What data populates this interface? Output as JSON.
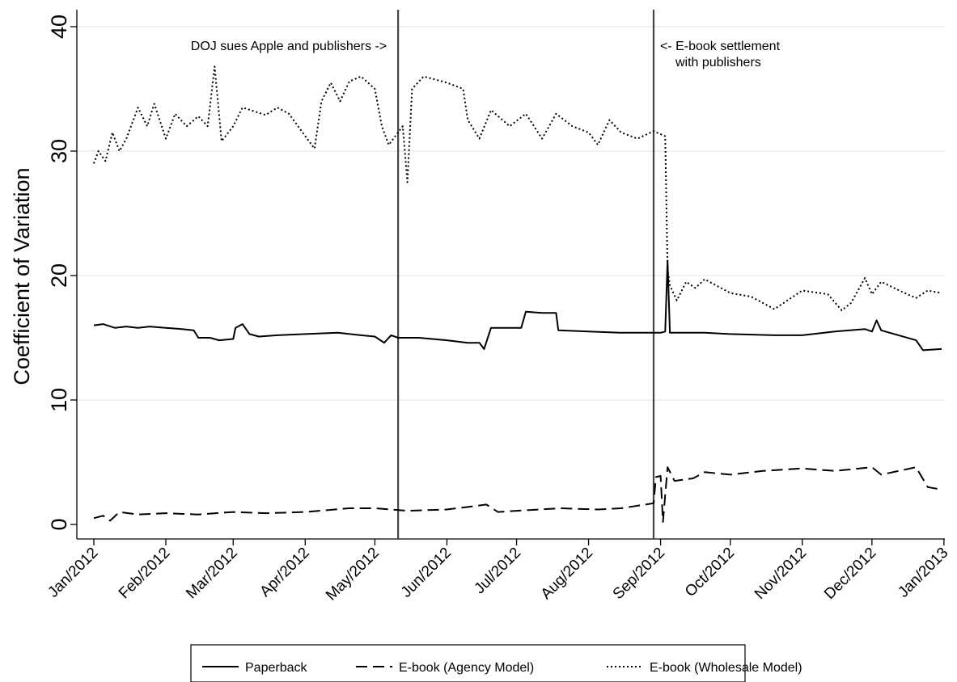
{
  "chart_data": {
    "type": "line",
    "title": "",
    "xlabel": "",
    "ylabel": "Coefficient of Variation",
    "x_unit": "date",
    "xlim": [
      "2012-01-01",
      "2012-12-31"
    ],
    "ylim": [
      0,
      40
    ],
    "yticks": [
      0,
      10,
      20,
      30,
      40
    ],
    "xtick_labels": [
      "Jan/2012",
      "Feb/2012",
      "Mar/2012",
      "Apr/2012",
      "May/2012",
      "Jun/2012",
      "Jul/2012",
      "Aug/2012",
      "Sep/2012",
      "Oct/2012",
      "Nov/2012",
      "Dec/2012",
      "Jan/2013"
    ],
    "xtick_dates": [
      "2012-01-01",
      "2012-02-01",
      "2012-03-01",
      "2012-04-01",
      "2012-05-01",
      "2012-06-01",
      "2012-07-01",
      "2012-08-01",
      "2012-09-01",
      "2012-10-01",
      "2012-11-01",
      "2012-12-01",
      "2013-01-01"
    ],
    "grid": true,
    "legend_position": "bottom",
    "vlines": [
      {
        "date": "2012-05-11",
        "label": "DOJ sues Apple and  publishers ->"
      },
      {
        "date": "2012-08-29",
        "label_lines": [
          "<- E-book settlement",
          "with publishers"
        ]
      }
    ],
    "series": [
      {
        "name": "Paperback",
        "style": "solid",
        "points": [
          [
            "2012-01-01",
            16.0
          ],
          [
            "2012-01-05",
            16.1
          ],
          [
            "2012-01-10",
            15.8
          ],
          [
            "2012-01-15",
            15.9
          ],
          [
            "2012-01-20",
            15.8
          ],
          [
            "2012-01-25",
            15.9
          ],
          [
            "2012-02-01",
            15.8
          ],
          [
            "2012-02-08",
            15.7
          ],
          [
            "2012-02-13",
            15.6
          ],
          [
            "2012-02-15",
            15.0
          ],
          [
            "2012-02-20",
            15.0
          ],
          [
            "2012-02-24",
            14.8
          ],
          [
            "2012-03-01",
            14.9
          ],
          [
            "2012-03-02",
            15.8
          ],
          [
            "2012-03-05",
            16.1
          ],
          [
            "2012-03-08",
            15.3
          ],
          [
            "2012-03-12",
            15.1
          ],
          [
            "2012-03-20",
            15.2
          ],
          [
            "2012-04-01",
            15.3
          ],
          [
            "2012-04-15",
            15.4
          ],
          [
            "2012-04-25",
            15.2
          ],
          [
            "2012-05-01",
            15.1
          ],
          [
            "2012-05-05",
            14.6
          ],
          [
            "2012-05-08",
            15.2
          ],
          [
            "2012-05-11",
            15.0
          ],
          [
            "2012-05-20",
            15.0
          ],
          [
            "2012-06-01",
            14.8
          ],
          [
            "2012-06-10",
            14.6
          ],
          [
            "2012-06-15",
            14.6
          ],
          [
            "2012-06-17",
            14.1
          ],
          [
            "2012-06-20",
            15.8
          ],
          [
            "2012-06-28",
            15.8
          ],
          [
            "2012-07-03",
            15.8
          ],
          [
            "2012-07-05",
            17.1
          ],
          [
            "2012-07-12",
            17.0
          ],
          [
            "2012-07-18",
            17.0
          ],
          [
            "2012-07-19",
            15.6
          ],
          [
            "2012-08-01",
            15.5
          ],
          [
            "2012-08-15",
            15.4
          ],
          [
            "2012-09-01",
            15.4
          ],
          [
            "2012-09-03",
            15.5
          ],
          [
            "2012-09-04",
            21.2
          ],
          [
            "2012-09-05",
            15.4
          ],
          [
            "2012-09-20",
            15.4
          ],
          [
            "2012-10-01",
            15.3
          ],
          [
            "2012-10-20",
            15.2
          ],
          [
            "2012-11-01",
            15.2
          ],
          [
            "2012-11-15",
            15.5
          ],
          [
            "2012-11-28",
            15.7
          ],
          [
            "2012-12-01",
            15.5
          ],
          [
            "2012-12-03",
            16.4
          ],
          [
            "2012-12-05",
            15.6
          ],
          [
            "2012-12-20",
            14.8
          ],
          [
            "2012-12-23",
            14.0
          ],
          [
            "2012-12-31",
            14.1
          ]
        ]
      },
      {
        "name": "E-book (Agency Model)",
        "style": "dashed",
        "points": [
          [
            "2012-01-01",
            0.5
          ],
          [
            "2012-01-05",
            0.7
          ],
          [
            "2012-01-08",
            0.3
          ],
          [
            "2012-01-12",
            1.0
          ],
          [
            "2012-01-20",
            0.8
          ],
          [
            "2012-02-01",
            0.9
          ],
          [
            "2012-02-15",
            0.8
          ],
          [
            "2012-03-01",
            1.0
          ],
          [
            "2012-03-15",
            0.9
          ],
          [
            "2012-04-01",
            1.0
          ],
          [
            "2012-04-20",
            1.3
          ],
          [
            "2012-05-01",
            1.3
          ],
          [
            "2012-05-15",
            1.1
          ],
          [
            "2012-06-01",
            1.2
          ],
          [
            "2012-06-10",
            1.4
          ],
          [
            "2012-06-18",
            1.6
          ],
          [
            "2012-06-23",
            1.0
          ],
          [
            "2012-07-01",
            1.1
          ],
          [
            "2012-07-20",
            1.3
          ],
          [
            "2012-08-05",
            1.2
          ],
          [
            "2012-08-15",
            1.3
          ],
          [
            "2012-08-29",
            1.7
          ],
          [
            "2012-08-30",
            3.8
          ],
          [
            "2012-09-01",
            3.9
          ],
          [
            "2012-09-02",
            0.2
          ],
          [
            "2012-09-04",
            4.6
          ],
          [
            "2012-09-07",
            3.5
          ],
          [
            "2012-09-15",
            3.7
          ],
          [
            "2012-09-20",
            4.2
          ],
          [
            "2012-10-01",
            4.0
          ],
          [
            "2012-10-15",
            4.3
          ],
          [
            "2012-11-01",
            4.5
          ],
          [
            "2012-11-15",
            4.3
          ],
          [
            "2012-12-01",
            4.6
          ],
          [
            "2012-12-05",
            4.0
          ],
          [
            "2012-12-20",
            4.6
          ],
          [
            "2012-12-25",
            3.0
          ],
          [
            "2012-12-31",
            2.8
          ]
        ]
      },
      {
        "name": "E-book (Wholesale Model)",
        "style": "dotted",
        "points": [
          [
            "2012-01-01",
            29.0
          ],
          [
            "2012-01-03",
            30.0
          ],
          [
            "2012-01-06",
            29.2
          ],
          [
            "2012-01-09",
            31.5
          ],
          [
            "2012-01-12",
            30.0
          ],
          [
            "2012-01-15",
            31.0
          ],
          [
            "2012-01-20",
            33.5
          ],
          [
            "2012-01-24",
            32.0
          ],
          [
            "2012-01-27",
            33.8
          ],
          [
            "2012-02-01",
            31.0
          ],
          [
            "2012-02-05",
            33.0
          ],
          [
            "2012-02-10",
            32.0
          ],
          [
            "2012-02-15",
            32.8
          ],
          [
            "2012-02-19",
            32.0
          ],
          [
            "2012-02-22",
            36.8
          ],
          [
            "2012-02-25",
            30.8
          ],
          [
            "2012-03-01",
            32.0
          ],
          [
            "2012-03-05",
            33.5
          ],
          [
            "2012-03-10",
            33.2
          ],
          [
            "2012-03-15",
            32.9
          ],
          [
            "2012-03-20",
            33.5
          ],
          [
            "2012-03-25",
            33.0
          ],
          [
            "2012-04-01",
            31.2
          ],
          [
            "2012-04-05",
            30.2
          ],
          [
            "2012-04-08",
            34.0
          ],
          [
            "2012-04-12",
            35.5
          ],
          [
            "2012-04-16",
            34.0
          ],
          [
            "2012-04-20",
            35.6
          ],
          [
            "2012-04-25",
            36.0
          ],
          [
            "2012-05-01",
            35.0
          ],
          [
            "2012-05-04",
            32.0
          ],
          [
            "2012-05-07",
            30.5
          ],
          [
            "2012-05-11",
            31.5
          ],
          [
            "2012-05-13",
            32.0
          ],
          [
            "2012-05-15",
            27.5
          ],
          [
            "2012-05-17",
            35.0
          ],
          [
            "2012-05-22",
            36.0
          ],
          [
            "2012-06-01",
            35.5
          ],
          [
            "2012-06-08",
            35.0
          ],
          [
            "2012-06-10",
            32.5
          ],
          [
            "2012-06-15",
            31.0
          ],
          [
            "2012-06-20",
            33.3
          ],
          [
            "2012-06-28",
            32.0
          ],
          [
            "2012-07-05",
            33.0
          ],
          [
            "2012-07-12",
            31.0
          ],
          [
            "2012-07-18",
            33.0
          ],
          [
            "2012-07-25",
            32.0
          ],
          [
            "2012-08-01",
            31.5
          ],
          [
            "2012-08-05",
            30.5
          ],
          [
            "2012-08-10",
            32.5
          ],
          [
            "2012-08-15",
            31.5
          ],
          [
            "2012-08-22",
            31.0
          ],
          [
            "2012-08-29",
            31.6
          ],
          [
            "2012-09-03",
            31.2
          ],
          [
            "2012-09-04",
            20.5
          ],
          [
            "2012-09-05",
            19.2
          ],
          [
            "2012-09-08",
            18.0
          ],
          [
            "2012-09-12",
            19.5
          ],
          [
            "2012-09-16",
            19.0
          ],
          [
            "2012-09-20",
            19.7
          ],
          [
            "2012-10-01",
            18.6
          ],
          [
            "2012-10-10",
            18.3
          ],
          [
            "2012-10-20",
            17.3
          ],
          [
            "2012-11-01",
            18.8
          ],
          [
            "2012-11-12",
            18.5
          ],
          [
            "2012-11-18",
            17.2
          ],
          [
            "2012-11-22",
            17.8
          ],
          [
            "2012-11-28",
            19.8
          ],
          [
            "2012-12-01",
            18.5
          ],
          [
            "2012-12-05",
            19.5
          ],
          [
            "2012-12-15",
            18.6
          ],
          [
            "2012-12-20",
            18.2
          ],
          [
            "2012-12-25",
            18.8
          ],
          [
            "2012-12-31",
            18.6
          ]
        ]
      }
    ]
  }
}
